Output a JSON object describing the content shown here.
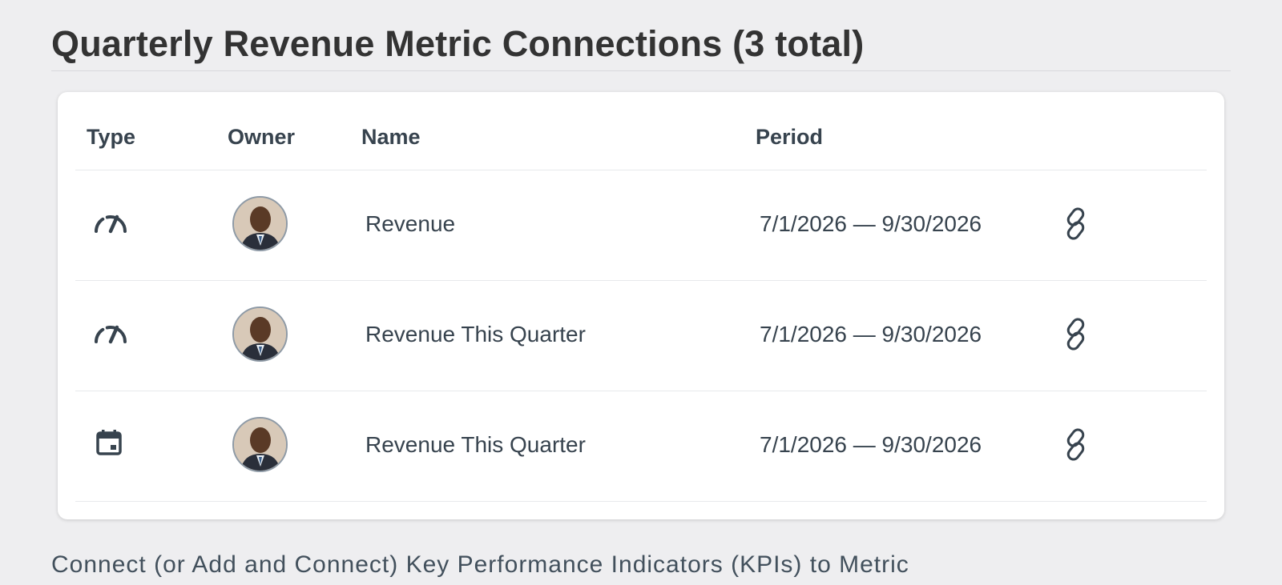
{
  "page": {
    "title": "Quarterly Revenue Metric Connections (3 total)",
    "subtitle": "Connect (or Add and Connect) Key Performance Indicators (KPIs) to Metric"
  },
  "table": {
    "columns": {
      "type": "Type",
      "owner": "Owner",
      "name": "Name",
      "period": "Period"
    },
    "rows": [
      {
        "type_icon": "speedometer-icon",
        "owner_avatar": "owner-avatar",
        "name": "Revenue",
        "period": "7/1/2026 — 9/30/2026",
        "action_icon": "link-icon"
      },
      {
        "type_icon": "speedometer-icon",
        "owner_avatar": "owner-avatar",
        "name": "Revenue This Quarter",
        "period": "7/1/2026 — 9/30/2026",
        "action_icon": "link-icon"
      },
      {
        "type_icon": "calendar-icon",
        "owner_avatar": "owner-avatar",
        "name": "Revenue This Quarter",
        "period": "7/1/2026 — 9/30/2026",
        "action_icon": "link-icon"
      }
    ]
  },
  "colors": {
    "background": "#eeeef0",
    "card": "#ffffff",
    "text": "#37434e",
    "title": "#333333",
    "divider": "#e7e9ec"
  }
}
